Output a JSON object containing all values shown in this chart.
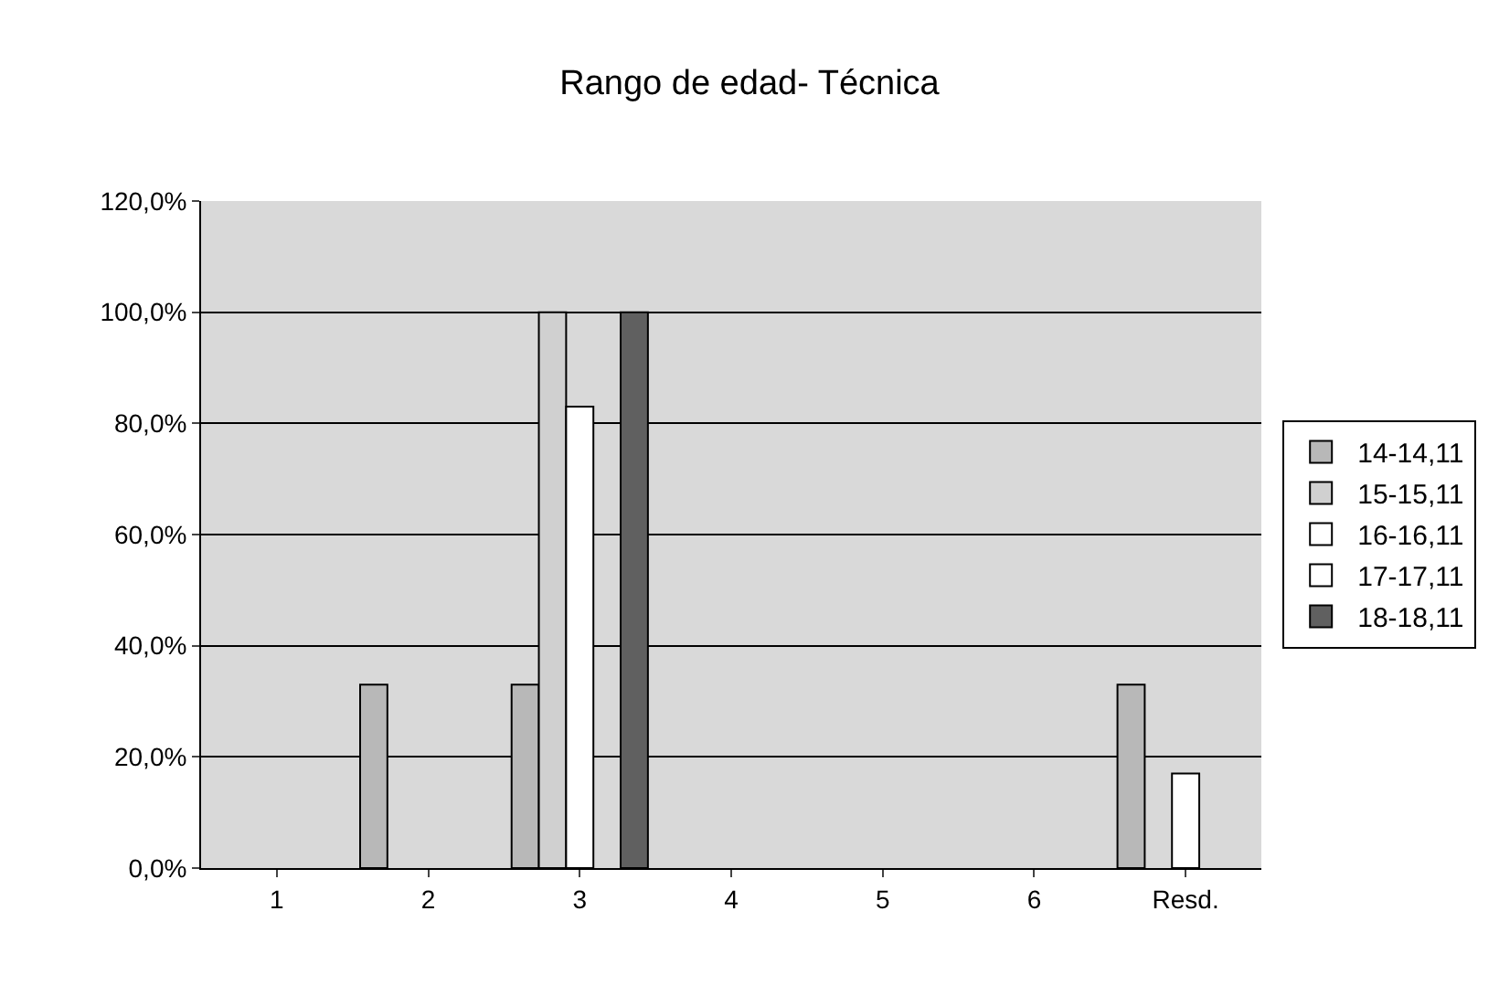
{
  "chart_data": {
    "type": "bar",
    "title": "Rango de edad- Técnica",
    "categories": [
      "1",
      "2",
      "3",
      "4",
      "5",
      "6",
      "Resd."
    ],
    "series": [
      {
        "name": "14-14,11",
        "color": "#b8b8b8",
        "values": [
          null,
          33,
          33,
          null,
          null,
          null,
          33
        ]
      },
      {
        "name": "15-15,11",
        "color": "#d0d0d0",
        "values": [
          null,
          null,
          100,
          null,
          null,
          null,
          null
        ]
      },
      {
        "name": "16-16,11",
        "color": "#ffffff",
        "values": [
          null,
          null,
          83,
          null,
          null,
          null,
          17
        ]
      },
      {
        "name": "17-17,11",
        "color": "#ffffff",
        "values": [
          null,
          null,
          null,
          null,
          null,
          null,
          null
        ]
      },
      {
        "name": "18-18,11",
        "color": "#606060",
        "values": [
          null,
          null,
          100,
          null,
          null,
          null,
          null
        ]
      }
    ],
    "ylim": [
      0,
      120
    ],
    "yticks": [
      {
        "value": 0,
        "label": "0,0%"
      },
      {
        "value": 20,
        "label": "20,0%"
      },
      {
        "value": 40,
        "label": "40,0%"
      },
      {
        "value": 60,
        "label": "60,0%"
      },
      {
        "value": 80,
        "label": "80,0%"
      },
      {
        "value": 100,
        "label": "100,0%"
      },
      {
        "value": 120,
        "label": "120,0%"
      }
    ],
    "grid": "y",
    "legend": "right"
  }
}
